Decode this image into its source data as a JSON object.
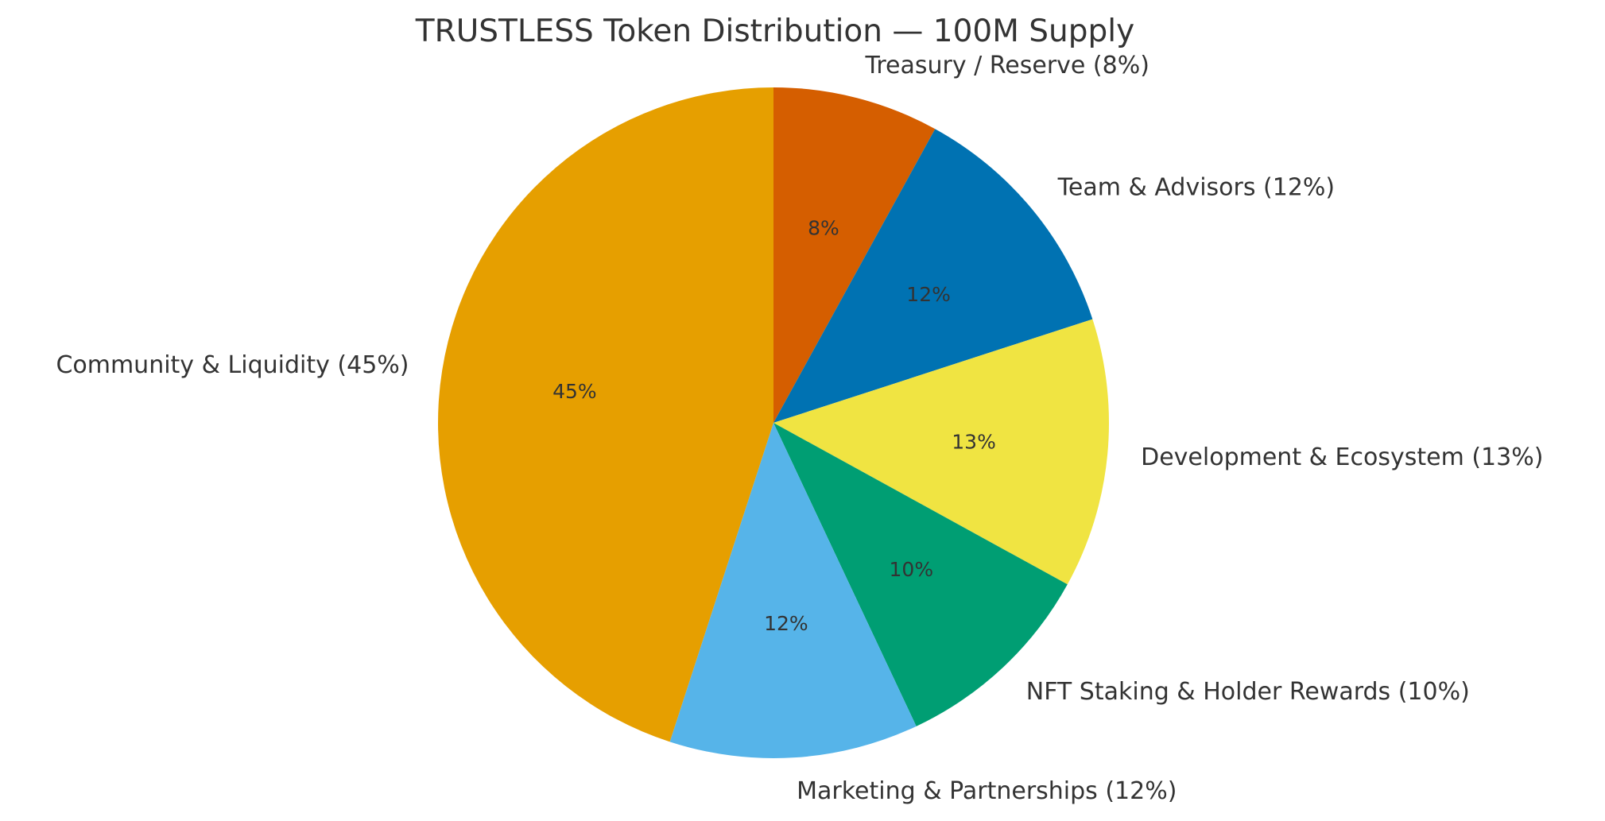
{
  "chart_data": {
    "type": "pie",
    "title": "TRUSTLESS Token Distribution — 100M Supply",
    "slices": [
      {
        "name": "Treasury / Reserve",
        "value": 8,
        "label": "Treasury / Reserve (8%)",
        "pct_label": "8%",
        "color": "#D55E00"
      },
      {
        "name": "Team & Advisors",
        "value": 12,
        "label": "Team & Advisors (12%)",
        "pct_label": "12%",
        "color": "#0072B2"
      },
      {
        "name": "Development & Ecosystem",
        "value": 13,
        "label": "Development & Ecosystem (13%)",
        "pct_label": "13%",
        "color": "#F0E442"
      },
      {
        "name": "NFT Staking & Holder Rewards",
        "value": 10,
        "label": "NFT Staking & Holder Rewards (10%)",
        "pct_label": "10%",
        "color": "#009E73"
      },
      {
        "name": "Marketing & Partnerships",
        "value": 12,
        "label": "Marketing & Partnerships (12%)",
        "pct_label": "12%",
        "color": "#56B4E9"
      },
      {
        "name": "Community & Liquidity",
        "value": 45,
        "label": "Community & Liquidity (45%)",
        "pct_label": "45%",
        "color": "#E69F00"
      }
    ],
    "start_angle_deg": 90,
    "direction": "clockwise",
    "legend": "none"
  }
}
